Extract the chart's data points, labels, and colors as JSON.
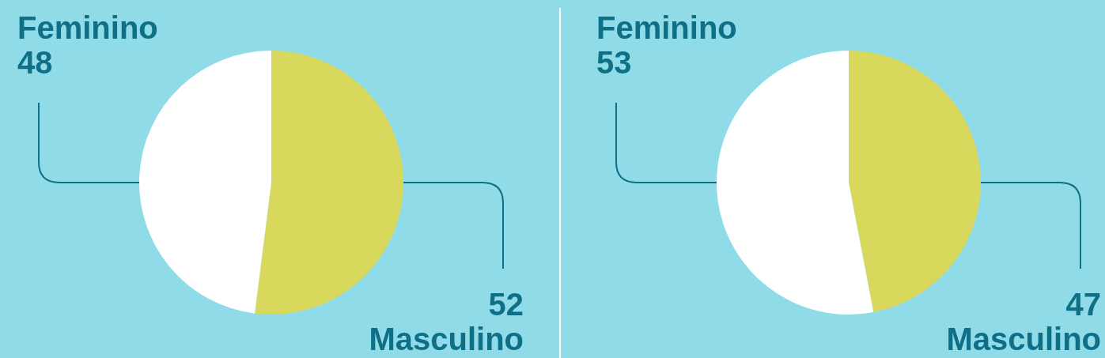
{
  "chart_data": [
    {
      "type": "pie",
      "categories": [
        "Masculino",
        "Feminino"
      ],
      "values": [
        52,
        48
      ],
      "colors": [
        "#d8d95c",
        "#ffffff"
      ],
      "data_labels": true,
      "legend": false
    },
    {
      "type": "pie",
      "categories": [
        "Masculino",
        "Feminino"
      ],
      "values": [
        47,
        53
      ],
      "colors": [
        "#d8d95c",
        "#ffffff"
      ],
      "data_labels": true,
      "legend": false
    }
  ]
}
